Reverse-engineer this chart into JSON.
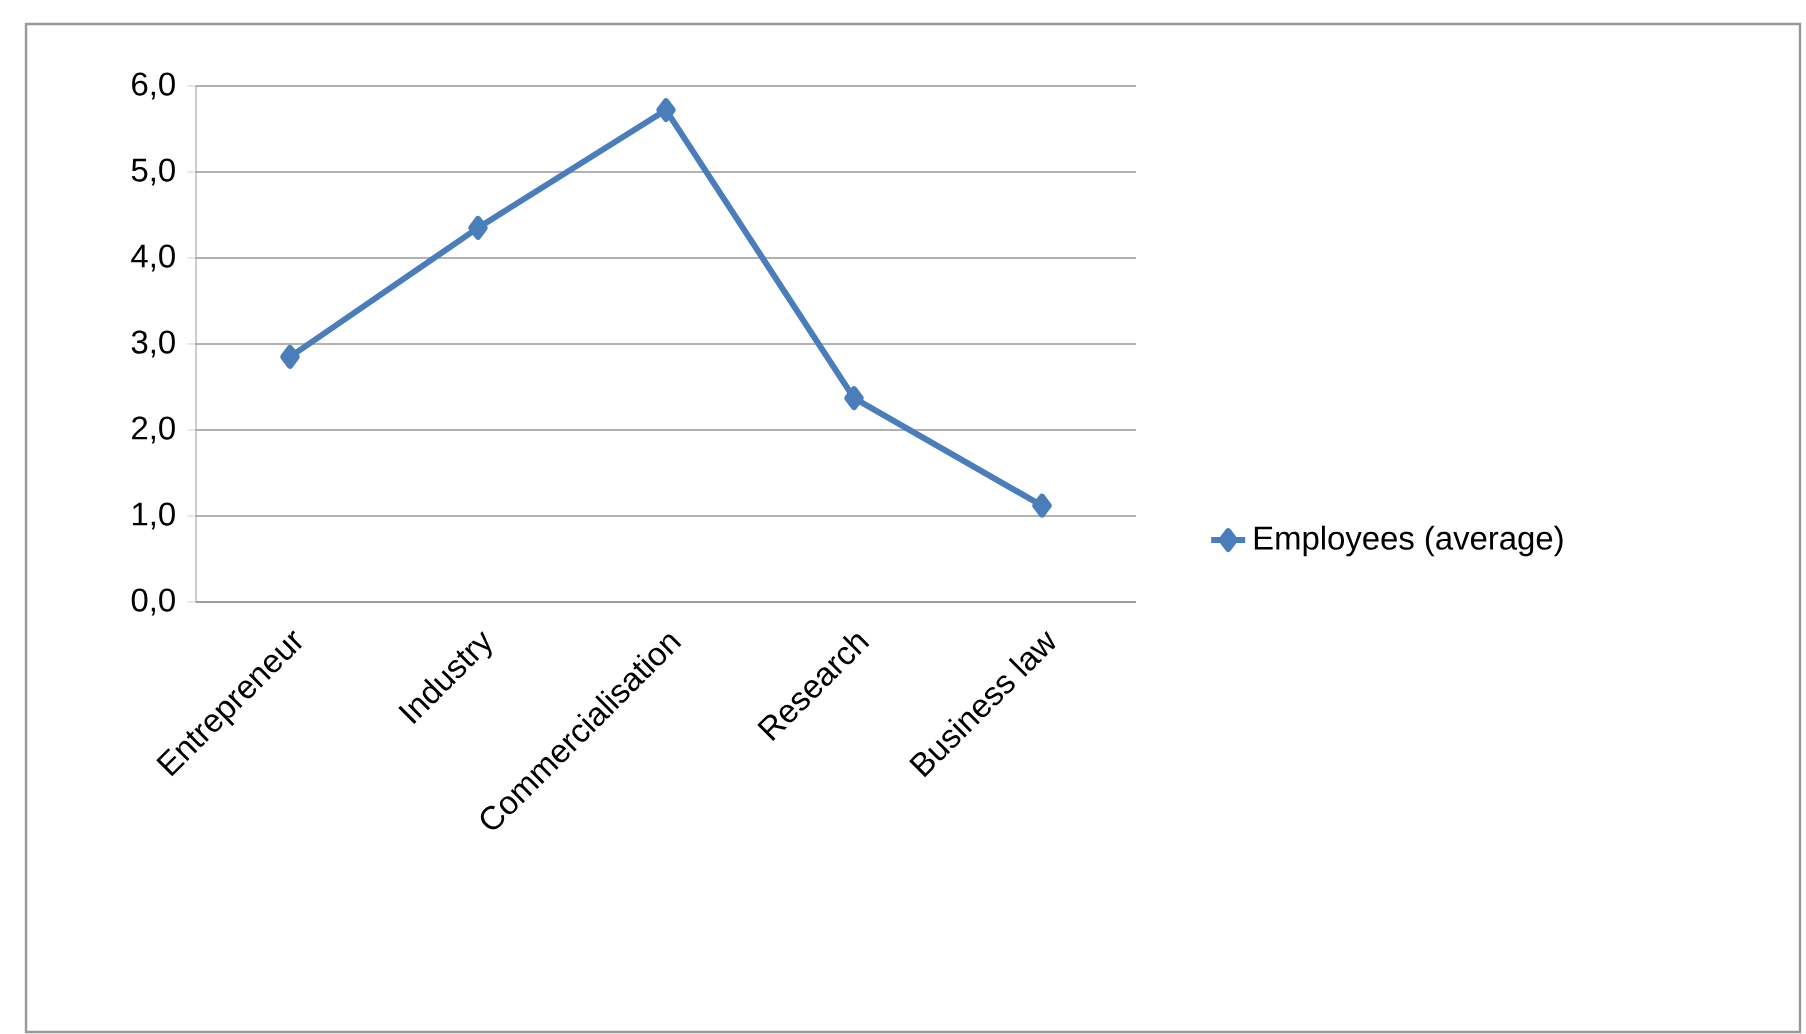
{
  "chart_data": {
    "type": "line",
    "categories": [
      "Entrepreneur",
      "Industry",
      "Commercialisation",
      "Research",
      "Business law"
    ],
    "series": [
      {
        "name": "Employees (average)",
        "color": "#4a7ebb",
        "values": [
          2.85,
          4.35,
          5.72,
          2.37,
          1.12
        ]
      }
    ],
    "ylim": [
      0,
      6
    ],
    "yticks": [
      {
        "value": 0,
        "label": "0,0"
      },
      {
        "value": 1,
        "label": "1,0"
      },
      {
        "value": 2,
        "label": "2,0"
      },
      {
        "value": 3,
        "label": "3,0"
      },
      {
        "value": 4,
        "label": "4,0"
      },
      {
        "value": 5,
        "label": "5,0"
      },
      {
        "value": 6,
        "label": "6,0"
      }
    ],
    "grid": "y",
    "legend": "right",
    "marker": "diamond",
    "line_style": "solid"
  }
}
